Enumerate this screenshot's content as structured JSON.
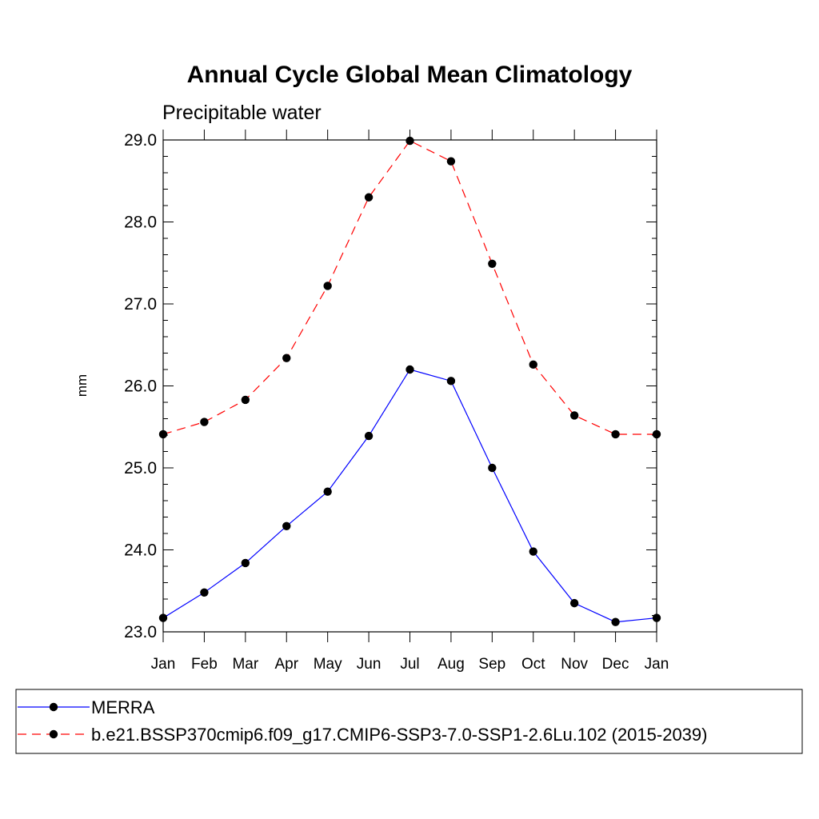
{
  "chart_data": {
    "type": "line",
    "title": "Annual Cycle Global Mean Climatology",
    "subtitle": "Precipitable water",
    "xlabel": "",
    "ylabel": "mm",
    "categories": [
      "Jan",
      "Feb",
      "Mar",
      "Apr",
      "May",
      "Jun",
      "Jul",
      "Aug",
      "Sep",
      "Oct",
      "Nov",
      "Dec",
      "Jan"
    ],
    "ylim": [
      23.0,
      29.0
    ],
    "yticks": [
      "23.0",
      "24.0",
      "25.0",
      "26.0",
      "27.0",
      "28.0",
      "29.0"
    ],
    "grid": false,
    "legend_position": "bottom",
    "series": [
      {
        "name": "MERRA",
        "color": "#0000ff",
        "dash": "solid",
        "values": [
          23.17,
          23.48,
          23.84,
          24.29,
          24.71,
          25.39,
          26.2,
          26.06,
          25.0,
          23.98,
          23.35,
          23.12,
          23.17
        ]
      },
      {
        "name": "b.e21.BSSP370cmip6.f09_g17.CMIP6-SSP3-7.0-SSP1-2.6Lu.102 (2015-2039)",
        "color": "#ff0000",
        "dash": "dashed",
        "values": [
          25.41,
          25.56,
          25.83,
          26.34,
          27.22,
          28.3,
          28.99,
          28.74,
          27.49,
          26.26,
          25.64,
          25.41,
          25.41
        ]
      }
    ]
  }
}
